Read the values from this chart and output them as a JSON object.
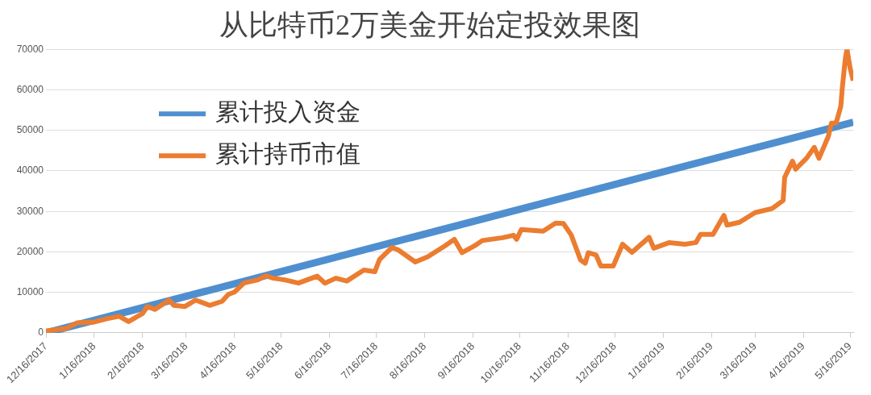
{
  "chart_data": {
    "type": "line",
    "title": "从比特币2万美金开始定投效果图",
    "series": [
      {
        "name": "累计投入资金",
        "color": "#4f8fcf",
        "x": [
          "2017-12-16",
          "2019-05-18"
        ],
        "values": [
          0,
          52000
        ]
      },
      {
        "name": "累计持币市值",
        "color": "#ec7c30",
        "x": [
          "2017-12-16",
          "2017-12-29",
          "2018-01-05",
          "2018-01-16",
          "2018-01-24",
          "2018-02-01",
          "2018-02-07",
          "2018-02-16",
          "2018-02-19",
          "2018-02-24",
          "2018-03-05",
          "2018-03-08",
          "2018-03-15",
          "2018-03-22",
          "2018-03-31",
          "2018-04-08",
          "2018-04-12",
          "2018-04-16",
          "2018-04-22",
          "2018-05-01",
          "2018-05-06",
          "2018-05-11",
          "2018-05-18",
          "2018-05-27",
          "2018-06-08",
          "2018-06-13",
          "2018-06-20",
          "2018-06-27",
          "2018-07-08",
          "2018-07-15",
          "2018-07-18",
          "2018-07-26",
          "2018-07-30",
          "2018-08-10",
          "2018-08-18",
          "2018-08-29",
          "2018-09-04",
          "2018-09-09",
          "2018-09-17",
          "2018-09-22",
          "2018-10-05",
          "2018-10-12",
          "2018-10-14",
          "2018-10-17",
          "2018-10-31",
          "2018-11-08",
          "2018-11-13",
          "2018-11-18",
          "2018-11-24",
          "2018-11-27",
          "2018-11-29",
          "2018-12-04",
          "2018-12-07",
          "2018-12-15",
          "2018-12-21",
          "2018-12-27",
          "2019-01-07",
          "2019-01-10",
          "2019-01-20",
          "2019-01-30",
          "2019-02-06",
          "2019-02-09",
          "2019-02-17",
          "2019-02-24",
          "2019-02-26",
          "2019-03-06",
          "2019-03-16",
          "2019-03-27",
          "2019-04-03",
          "2019-04-04",
          "2019-04-09",
          "2019-04-11",
          "2019-04-18",
          "2019-04-23",
          "2019-04-26",
          "2019-05-02",
          "2019-05-04",
          "2019-05-07",
          "2019-05-10",
          "2019-05-11",
          "2019-05-13",
          "2019-05-14",
          "2019-05-16",
          "2019-05-18"
        ],
        "values": [
          500,
          1100,
          2500,
          2700,
          3500,
          4100,
          2800,
          4800,
          6500,
          5800,
          8100,
          6800,
          6500,
          8100,
          6800,
          7800,
          9500,
          10100,
          12300,
          13100,
          14100,
          13500,
          13100,
          12300,
          14000,
          12300,
          13500,
          12800,
          15500,
          15100,
          18100,
          21100,
          20500,
          17500,
          18800,
          21500,
          23100,
          19800,
          21500,
          22800,
          23500,
          24100,
          23100,
          25500,
          25100,
          27100,
          27000,
          24200,
          18000,
          17200,
          19800,
          19200,
          16500,
          16500,
          21900,
          19900,
          23600,
          20900,
          22300,
          21900,
          22300,
          24300,
          24300,
          29000,
          26600,
          27300,
          29700,
          30700,
          32700,
          38400,
          42400,
          40400,
          43100,
          45800,
          43100,
          48500,
          51800,
          51800,
          55900,
          60600,
          68000,
          70000,
          65300,
          62300
        ]
      }
    ],
    "xlim": [
      "2017-12-16",
      "2019-05-18"
    ],
    "xticks": [
      {
        "value": "2017-12-16",
        "label": "12/16/2017"
      },
      {
        "value": "2018-01-16",
        "label": "1/16/2018"
      },
      {
        "value": "2018-02-16",
        "label": "2/16/2018"
      },
      {
        "value": "2018-03-16",
        "label": "3/16/2018"
      },
      {
        "value": "2018-04-16",
        "label": "4/16/2018"
      },
      {
        "value": "2018-05-16",
        "label": "5/16/2018"
      },
      {
        "value": "2018-06-16",
        "label": "6/16/2018"
      },
      {
        "value": "2018-07-16",
        "label": "7/16/2018"
      },
      {
        "value": "2018-08-16",
        "label": "8/16/2018"
      },
      {
        "value": "2018-09-16",
        "label": "9/16/2018"
      },
      {
        "value": "2018-10-16",
        "label": "10/16/2018"
      },
      {
        "value": "2018-11-16",
        "label": "11/16/2018"
      },
      {
        "value": "2018-12-16",
        "label": "12/16/2018"
      },
      {
        "value": "2019-01-16",
        "label": "1/16/2019"
      },
      {
        "value": "2019-02-16",
        "label": "2/16/2019"
      },
      {
        "value": "2019-03-16",
        "label": "3/16/2019"
      },
      {
        "value": "2019-04-16",
        "label": "4/16/2019"
      },
      {
        "value": "2019-05-16",
        "label": "5/16/2019"
      }
    ],
    "ylim": [
      0,
      70000
    ],
    "yticks": [
      0,
      10000,
      20000,
      30000,
      40000,
      50000,
      60000,
      70000
    ],
    "grid": "y",
    "legend": "top left",
    "marker": "none",
    "line_style": "solid"
  }
}
